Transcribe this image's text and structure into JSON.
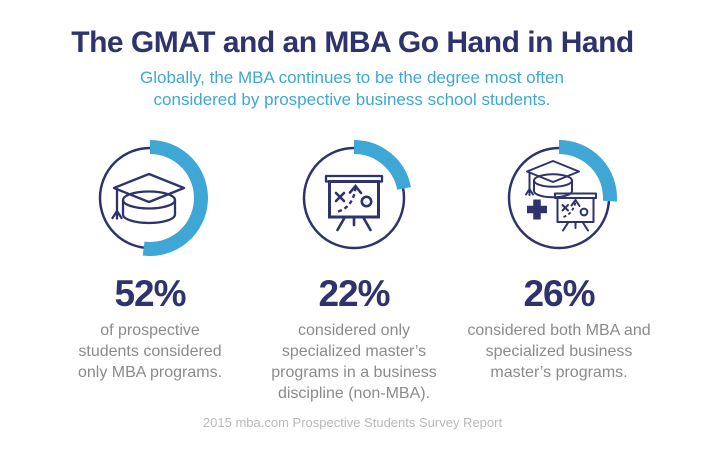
{
  "header": {
    "title": "The GMAT and an MBA Go Hand in Hand",
    "subtitle": "Globally, the MBA continues to be the degree most often considered by prospective business school students."
  },
  "stats": [
    {
      "percent_label": "52%",
      "value": 52,
      "description": "of prospective students considered only MBA programs.",
      "icon": "graduation-cap"
    },
    {
      "percent_label": "22%",
      "value": 22,
      "description": "considered only specialized master’s programs in a business discipline (non-MBA).",
      "icon": "strategy-board"
    },
    {
      "percent_label": "26%",
      "value": 26,
      "description": "considered both MBA and specialized business master’s programs.",
      "icon": "cap-plus-board"
    }
  ],
  "footer": {
    "source": "2015 mba.com Prospective Students Survey Report"
  },
  "colors": {
    "navy": "#2e336d",
    "accent": "#3ea7d6",
    "body_gray": "#8b8b8d",
    "footer_gray": "#b9b9bb",
    "background": "#ffffff"
  },
  "chart_data": {
    "type": "pie",
    "title": "The GMAT and an MBA Go Hand in Hand",
    "subtitle": "Globally, the MBA continues to be the degree most often considered by prospective business school students.",
    "categories": [
      "of prospective students considered only MBA programs",
      "considered only specialized master’s programs in a business discipline (non-MBA)",
      "considered both MBA and specialized business master’s programs"
    ],
    "values": [
      52,
      22,
      26
    ],
    "unit": "%",
    "legend_position": "none",
    "render_style": "three partial donut rings, arc starts at 12 o'clock clockwise",
    "source": "2015 mba.com Prospective Students Survey Report"
  }
}
